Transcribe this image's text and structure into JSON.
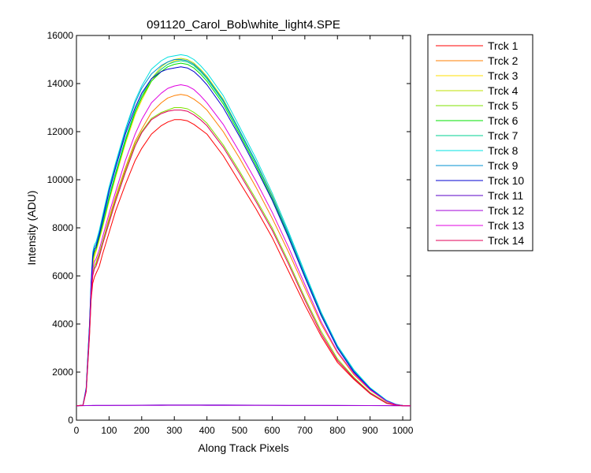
{
  "chart_data": {
    "type": "line",
    "title": "091120_Carol_Bob\\white_light4.SPE",
    "xlabel": "Along Track Pixels",
    "ylabel": "Intensity (ADU)",
    "xlim": [
      0,
      1024
    ],
    "ylim": [
      0,
      16000
    ],
    "xticks": [
      0,
      100,
      200,
      300,
      400,
      500,
      600,
      700,
      800,
      900,
      1000
    ],
    "yticks": [
      0,
      2000,
      4000,
      6000,
      8000,
      10000,
      12000,
      14000,
      16000
    ],
    "grid": false,
    "legend_position": "outside-right",
    "x": [
      0,
      20,
      30,
      40,
      45,
      50,
      55,
      60,
      70,
      80,
      100,
      120,
      150,
      180,
      200,
      230,
      260,
      280,
      300,
      320,
      340,
      360,
      380,
      400,
      450,
      500,
      550,
      600,
      650,
      700,
      750,
      800,
      850,
      900,
      950,
      980,
      1000,
      1024
    ],
    "series": [
      {
        "name": "Trck 1",
        "color": "#ff0000",
        "values": [
          600,
          620,
          1200,
          3500,
          5000,
          5700,
          5950,
          6100,
          6400,
          6900,
          7800,
          8700,
          9800,
          10800,
          11300,
          11900,
          12250,
          12400,
          12500,
          12500,
          12450,
          12300,
          12100,
          11900,
          11000,
          9900,
          8800,
          7600,
          6200,
          4800,
          3500,
          2400,
          1700,
          1100,
          700,
          620,
          600,
          600
        ]
      },
      {
        "name": "Trck 2",
        "color": "#ff7f00",
        "values": [
          600,
          620,
          1250,
          3700,
          5200,
          6100,
          6400,
          6500,
          6900,
          7400,
          8400,
          9300,
          10500,
          11600,
          12100,
          12800,
          13200,
          13400,
          13500,
          13550,
          13500,
          13350,
          13150,
          12900,
          12000,
          10900,
          9700,
          8400,
          7000,
          5500,
          4000,
          2800,
          1900,
          1250,
          780,
          640,
          610,
          600
        ]
      },
      {
        "name": "Trck 3",
        "color": "#ffdf00",
        "values": [
          600,
          620,
          1300,
          3800,
          5400,
          6400,
          6800,
          7000,
          7500,
          8000,
          9100,
          10100,
          11500,
          12700,
          13300,
          14100,
          14600,
          14800,
          14950,
          15000,
          14950,
          14800,
          14550,
          14250,
          13300,
          12000,
          10700,
          9300,
          7700,
          6000,
          4400,
          3000,
          2000,
          1300,
          800,
          650,
          610,
          600
        ]
      },
      {
        "name": "Trck 4",
        "color": "#bfe000",
        "values": [
          600,
          620,
          1300,
          3850,
          5450,
          6500,
          6900,
          7100,
          7600,
          8100,
          9200,
          10200,
          11600,
          12800,
          13400,
          14200,
          14700,
          14900,
          15000,
          15050,
          15000,
          14850,
          14600,
          14300,
          13350,
          12050,
          10750,
          9350,
          7750,
          6050,
          4450,
          3050,
          2050,
          1320,
          810,
          650,
          610,
          600
        ]
      },
      {
        "name": "Trck 5",
        "color": "#7fe000",
        "values": [
          600,
          620,
          1250,
          3700,
          5200,
          6100,
          6400,
          6550,
          6950,
          7400,
          8300,
          9200,
          10400,
          11500,
          12000,
          12550,
          12800,
          12900,
          13000,
          13000,
          12950,
          12800,
          12600,
          12350,
          11450,
          10350,
          9200,
          8000,
          6600,
          5100,
          3700,
          2550,
          1780,
          1150,
          730,
          630,
          605,
          600
        ]
      },
      {
        "name": "Trck 6",
        "color": "#00e000",
        "values": [
          600,
          620,
          1300,
          3900,
          5500,
          6700,
          7000,
          7100,
          7600,
          8100,
          9200,
          10200,
          11600,
          12800,
          13400,
          14100,
          14500,
          14700,
          14800,
          14850,
          14800,
          14650,
          14400,
          14100,
          13150,
          11900,
          10600,
          9200,
          7650,
          6000,
          4400,
          3000,
          2000,
          1300,
          800,
          650,
          610,
          600
        ]
      },
      {
        "name": "Trck 7",
        "color": "#00d090",
        "values": [
          600,
          620,
          1300,
          3950,
          5600,
          6800,
          7100,
          7200,
          7700,
          8200,
          9300,
          10300,
          11700,
          12900,
          13500,
          14200,
          14600,
          14800,
          14900,
          14950,
          14900,
          14750,
          14500,
          14200,
          13250,
          12000,
          10700,
          9300,
          7700,
          6050,
          4450,
          3050,
          2050,
          1320,
          810,
          650,
          610,
          600
        ]
      },
      {
        "name": "Trck 8",
        "color": "#00e0e0",
        "values": [
          600,
          620,
          1350,
          4000,
          5700,
          7000,
          7300,
          7400,
          7900,
          8500,
          9700,
          10700,
          12100,
          13300,
          13900,
          14600,
          14950,
          15100,
          15150,
          15200,
          15150,
          15000,
          14750,
          14450,
          13500,
          12200,
          10900,
          9450,
          7850,
          6150,
          4500,
          3100,
          2100,
          1350,
          830,
          660,
          610,
          600
        ]
      },
      {
        "name": "Trck 9",
        "color": "#0090d0",
        "values": [
          600,
          620,
          1350,
          4000,
          5700,
          6900,
          7200,
          7300,
          7800,
          8400,
          9600,
          10600,
          12000,
          13200,
          13800,
          14400,
          14750,
          14900,
          15000,
          15000,
          14950,
          14800,
          14550,
          14250,
          13300,
          12050,
          10750,
          9300,
          7750,
          6050,
          4450,
          3050,
          2050,
          1320,
          810,
          650,
          610,
          600
        ]
      },
      {
        "name": "Trck 10",
        "color": "#0000d0",
        "values": [
          600,
          620,
          1300,
          3900,
          5600,
          6800,
          7100,
          7200,
          7700,
          8300,
          9500,
          10500,
          11900,
          13000,
          13600,
          14200,
          14500,
          14600,
          14650,
          14700,
          14650,
          14500,
          14250,
          13950,
          13000,
          11800,
          10500,
          9150,
          7600,
          5950,
          4350,
          3000,
          2000,
          1300,
          800,
          645,
          608,
          600
        ]
      },
      {
        "name": "Trck 11",
        "color": "#5a00c8",
        "values": [
          600,
          605,
          608,
          610,
          610,
          612,
          612,
          613,
          613,
          614,
          615,
          616,
          618,
          620,
          622,
          625,
          628,
          630,
          632,
          633,
          633,
          632,
          631,
          630,
          628,
          625,
          622,
          620,
          618,
          616,
          614,
          612,
          610,
          608,
          606,
          604,
          602,
          600
        ]
      },
      {
        "name": "Trck 12",
        "color": "#a000d8",
        "values": [
          600,
          603,
          605,
          606,
          607,
          608,
          608,
          609,
          609,
          610,
          611,
          612,
          613,
          614,
          615,
          617,
          618,
          619,
          620,
          620,
          620,
          620,
          619,
          618,
          617,
          615,
          613,
          612,
          611,
          610,
          609,
          608,
          606,
          605,
          603,
          602,
          601,
          600
        ]
      },
      {
        "name": "Trck 13",
        "color": "#e000e0",
        "values": [
          600,
          620,
          1250,
          3750,
          5300,
          6300,
          6600,
          6700,
          7100,
          7600,
          8600,
          9500,
          10800,
          11900,
          12500,
          13200,
          13600,
          13800,
          13900,
          13950,
          13900,
          13750,
          13500,
          13200,
          12300,
          11150,
          9950,
          8650,
          7200,
          5650,
          4100,
          2850,
          1950,
          1270,
          790,
          640,
          608,
          600
        ]
      },
      {
        "name": "Trck 14",
        "color": "#e0005a",
        "values": [
          600,
          620,
          1200,
          3600,
          5100,
          6000,
          6300,
          6400,
          6800,
          7300,
          8200,
          9100,
          10300,
          11400,
          11950,
          12500,
          12750,
          12850,
          12900,
          12900,
          12850,
          12700,
          12500,
          12250,
          11350,
          10250,
          9100,
          7900,
          6500,
          5000,
          3600,
          2480,
          1740,
          1120,
          710,
          625,
          603,
          600
        ]
      }
    ]
  }
}
